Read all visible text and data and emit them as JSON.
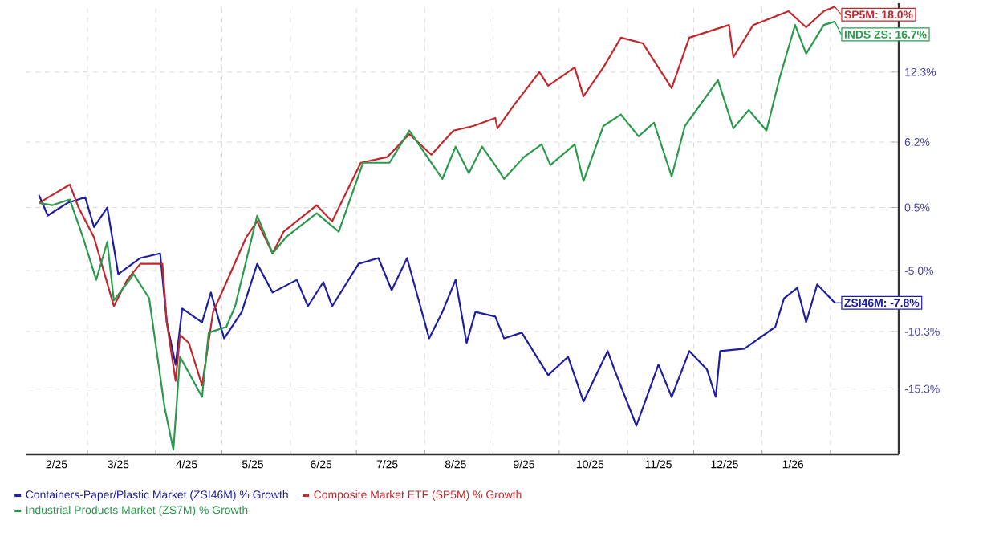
{
  "chart_data": {
    "type": "line",
    "xlim": [
      "2025-02-01",
      "2026-03-04"
    ],
    "ylim": [
      -21,
      18.3
    ],
    "xticks": [
      {
        "value": "2025-03-01",
        "label": null
      },
      {
        "value": "2025-04-01",
        "label": null
      },
      {
        "value": "2025-05-01",
        "label": null
      },
      {
        "value": "2025-06-01",
        "label": null
      },
      {
        "value": "2025-07-01",
        "label": null
      },
      {
        "value": "2025-08-01",
        "label": null
      },
      {
        "value": "2025-09-01",
        "label": null
      },
      {
        "value": "2025-10-01",
        "label": null
      },
      {
        "value": "2025-11-01",
        "label": null
      },
      {
        "value": "2025-12-01",
        "label": null
      },
      {
        "value": "2026-01-01",
        "label": null
      },
      {
        "value": "2026-02-01",
        "label": null
      },
      {
        "value": "2025-02-15",
        "label": "2/25"
      },
      {
        "value": "2025-03-15",
        "label": "3/25"
      },
      {
        "value": "2025-04-15",
        "label": "4/25"
      },
      {
        "value": "2025-05-15",
        "label": "5/25"
      },
      {
        "value": "2025-06-15",
        "label": "6/25"
      },
      {
        "value": "2025-07-15",
        "label": "7/25"
      },
      {
        "value": "2025-08-15",
        "label": "8/25"
      },
      {
        "value": "2025-09-15",
        "label": "9/25"
      },
      {
        "value": "2025-10-15",
        "label": "10/25"
      },
      {
        "value": "2025-11-15",
        "label": "11/25"
      },
      {
        "value": "2025-12-15",
        "label": "12/25"
      },
      {
        "value": "2026-01-15",
        "label": "1/26"
      }
    ],
    "yticks": [
      {
        "value": 12.3,
        "label": "12.3%"
      },
      {
        "value": 6.2,
        "label": "6.2%"
      },
      {
        "value": 0.5,
        "label": "0.5%"
      },
      {
        "value": -5.0,
        "label": "-5.0%"
      },
      {
        "value": -10.3,
        "label": "-10.3%"
      },
      {
        "value": -15.3,
        "label": "-15.3%"
      }
    ],
    "grid": true,
    "legend": "bottom",
    "marker": "none",
    "line_style": "solid",
    "series": [
      {
        "name": "Containers-Paper/Plastic Market (ZSI46M) % Growth",
        "color": "#1f1f9e",
        "x": [
          "2025-02-07",
          "2025-02-11",
          "2025-02-20",
          "2025-02-28",
          "2025-03-04",
          "2025-03-10",
          "2025-03-15",
          "2025-03-25",
          "2025-04-03",
          "2025-04-06",
          "2025-04-10",
          "2025-04-13",
          "2025-04-22",
          "2025-04-26",
          "2025-05-02",
          "2025-05-10",
          "2025-05-17",
          "2025-05-24",
          "2025-06-04",
          "2025-06-09",
          "2025-06-16",
          "2025-06-20",
          "2025-07-02",
          "2025-07-11",
          "2025-07-17",
          "2025-07-24",
          "2025-08-03",
          "2025-08-09",
          "2025-08-15",
          "2025-08-20",
          "2025-08-24",
          "2025-09-02",
          "2025-09-06",
          "2025-09-14",
          "2025-09-26",
          "2025-10-05",
          "2025-10-12",
          "2025-10-23",
          "2025-10-26",
          "2025-11-05",
          "2025-11-15",
          "2025-11-21",
          "2025-11-29",
          "2025-12-07",
          "2025-12-11",
          "2025-12-13",
          "2025-12-24",
          "2026-01-07",
          "2026-01-11",
          "2026-01-17",
          "2026-01-21",
          "2026-01-26",
          "2026-02-03"
        ],
        "values": [
          1.6,
          -0.2,
          0.9,
          1.4,
          -1.2,
          0.5,
          -5.3,
          -3.9,
          -3.5,
          -9.5,
          -13.2,
          -8.3,
          -9.5,
          -6.9,
          -10.9,
          -8.6,
          -4.4,
          -6.9,
          -5.8,
          -8.1,
          -6.0,
          -8.1,
          -4.4,
          -3.9,
          -6.7,
          -3.9,
          -10.9,
          -8.6,
          -5.8,
          -11.3,
          -8.6,
          -9.0,
          -10.9,
          -10.4,
          -14.1,
          -12.5,
          -16.4,
          -12.0,
          -13.6,
          -18.5,
          -13.2,
          -16.0,
          -12.0,
          -13.6,
          -16.0,
          -12.0,
          -11.8,
          -9.9,
          -7.4,
          -6.5,
          -9.5,
          -6.2,
          -7.8
        ]
      },
      {
        "name": "Composite Market ETF (SP5M) % Growth",
        "color": "#c0282c",
        "x": [
          "2025-02-07",
          "2025-02-21",
          "2025-02-25",
          "2025-03-04",
          "2025-03-13",
          "2025-03-19",
          "2025-03-25",
          "2025-04-04",
          "2025-04-06",
          "2025-04-10",
          "2025-04-12",
          "2025-04-16",
          "2025-04-22",
          "2025-04-27",
          "2025-05-04",
          "2025-05-12",
          "2025-05-17",
          "2025-05-24",
          "2025-05-29",
          "2025-06-13",
          "2025-06-20",
          "2025-07-03",
          "2025-07-15",
          "2025-07-25",
          "2025-08-04",
          "2025-08-14",
          "2025-08-23",
          "2025-09-02",
          "2025-09-03",
          "2025-09-10",
          "2025-09-22",
          "2025-09-26",
          "2025-10-08",
          "2025-10-12",
          "2025-10-21",
          "2025-10-29",
          "2025-11-08",
          "2025-11-21",
          "2025-11-29",
          "2025-12-17",
          "2025-12-19",
          "2025-12-28",
          "2026-01-13",
          "2026-01-21",
          "2026-01-29",
          "2026-02-03"
        ],
        "values": [
          0.9,
          2.5,
          0.5,
          -2.1,
          -8.1,
          -5.8,
          -4.4,
          -4.4,
          -9.5,
          -14.6,
          -10.6,
          -11.3,
          -15.0,
          -8.6,
          -5.6,
          -2.1,
          -0.7,
          -3.5,
          -1.6,
          0.7,
          -0.7,
          4.4,
          4.9,
          6.9,
          5.1,
          7.2,
          7.6,
          8.3,
          7.4,
          9.3,
          12.3,
          11.1,
          12.7,
          10.2,
          12.7,
          15.3,
          14.8,
          10.9,
          15.3,
          16.4,
          13.6,
          16.4,
          17.6,
          16.2,
          17.6,
          18.0
        ]
      },
      {
        "name": "Industrial Products Market (ZS7M) % Growth",
        "color": "#2a9a4c",
        "x": [
          "2025-02-07",
          "2025-02-13",
          "2025-02-21",
          "2025-02-27",
          "2025-03-05",
          "2025-03-10",
          "2025-03-13",
          "2025-03-22",
          "2025-03-29",
          "2025-04-05",
          "2025-04-09",
          "2025-04-12",
          "2025-04-22",
          "2025-04-25",
          "2025-05-03",
          "2025-05-07",
          "2025-05-17",
          "2025-05-24",
          "2025-05-30",
          "2025-06-13",
          "2025-06-23",
          "2025-07-04",
          "2025-07-16",
          "2025-07-25",
          "2025-08-09",
          "2025-08-15",
          "2025-08-21",
          "2025-08-27",
          "2025-09-03",
          "2025-09-06",
          "2025-09-15",
          "2025-09-23",
          "2025-09-27",
          "2025-10-08",
          "2025-10-12",
          "2025-10-21",
          "2025-10-29",
          "2025-11-06",
          "2025-11-13",
          "2025-11-21",
          "2025-11-27",
          "2025-12-12",
          "2025-12-19",
          "2025-12-26",
          "2026-01-03",
          "2026-01-09",
          "2026-01-16",
          "2026-01-21",
          "2026-01-29",
          "2026-02-03"
        ],
        "values": [
          0.9,
          0.7,
          1.2,
          -2.1,
          -5.8,
          -2.5,
          -7.6,
          -5.3,
          -7.4,
          -16.9,
          -20.6,
          -12.5,
          -16.0,
          -10.4,
          -9.9,
          -8.1,
          -0.2,
          -3.5,
          -2.1,
          0.0,
          -1.6,
          4.4,
          4.4,
          7.2,
          3.0,
          5.8,
          3.5,
          5.8,
          3.9,
          3.0,
          4.9,
          6.0,
          4.2,
          6.0,
          2.8,
          7.6,
          8.6,
          6.7,
          7.9,
          3.2,
          7.6,
          11.6,
          7.4,
          9.0,
          7.2,
          11.8,
          16.4,
          13.9,
          16.4,
          16.7
        ]
      }
    ],
    "annotations": [
      {
        "text": "ZSI46M: -7.8%",
        "x": "2026-02-03",
        "y": -7.8
      },
      {
        "text": "SP5M: 18.0%",
        "x": "2026-02-03",
        "y": 18.0
      },
      {
        "text": "INDS ZS: 16.7%",
        "x": "2026-02-03",
        "y": 16.7
      }
    ]
  }
}
